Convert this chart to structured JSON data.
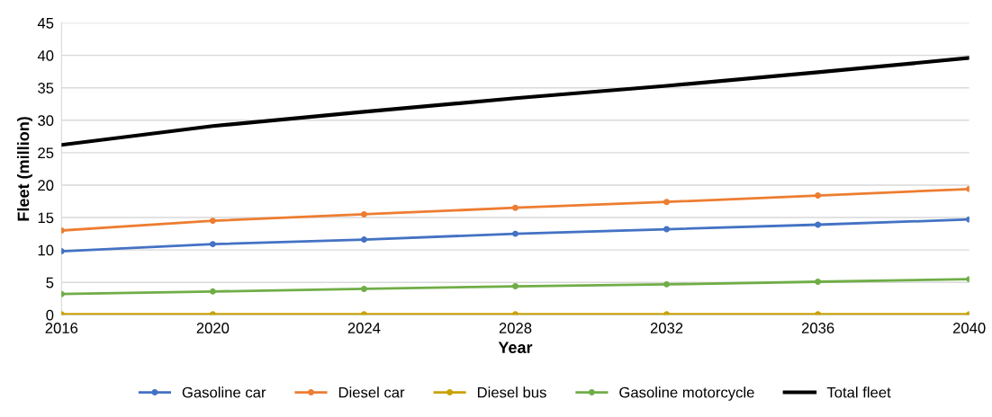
{
  "chart_data": {
    "type": "line",
    "xlabel": "Year",
    "ylabel": "Fleet (million)",
    "x": [
      2016,
      2020,
      2024,
      2028,
      2032,
      2036,
      2040
    ],
    "series": [
      {
        "name": "Gasoline car",
        "color": "#4472c4",
        "marker": "circle",
        "values": [
          9.8,
          10.9,
          11.6,
          12.5,
          13.2,
          13.9,
          14.7
        ]
      },
      {
        "name": "Diesel car",
        "color": "#ed7d31",
        "marker": "circle",
        "values": [
          13.0,
          14.5,
          15.5,
          16.5,
          17.4,
          18.4,
          19.4
        ]
      },
      {
        "name": "Diesel bus",
        "color": "#c9a200",
        "marker": "circle",
        "values": [
          0.1,
          0.1,
          0.1,
          0.1,
          0.1,
          0.1,
          0.1
        ]
      },
      {
        "name": "Gasoline motorcycle",
        "color": "#70ad47",
        "marker": "circle",
        "values": [
          3.2,
          3.6,
          4.0,
          4.4,
          4.7,
          5.1,
          5.5
        ]
      },
      {
        "name": "Total fleet",
        "color": "#000000",
        "marker": "none",
        "values": [
          26.2,
          29.1,
          31.3,
          33.4,
          35.3,
          37.4,
          39.6
        ]
      }
    ],
    "xlim": [
      2016,
      2040
    ],
    "xticks": [
      2016,
      2020,
      2024,
      2028,
      2032,
      2036,
      2040
    ],
    "ylim": [
      0,
      45
    ],
    "yticks": [
      0,
      5,
      10,
      15,
      20,
      25,
      30,
      35,
      40,
      45
    ],
    "grid": "y",
    "legend": "bottom"
  }
}
